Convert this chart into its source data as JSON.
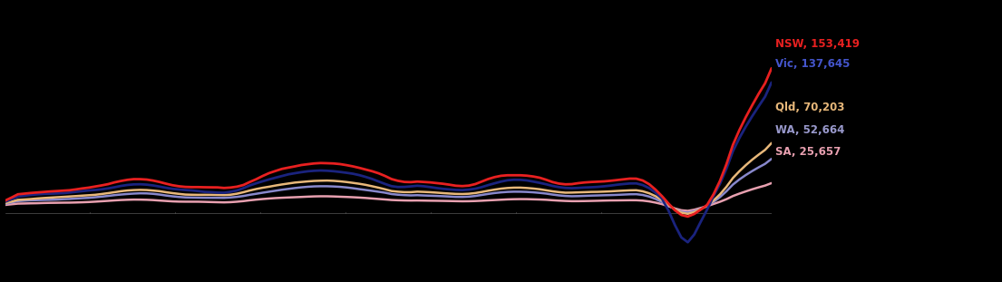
{
  "background_color": "#000000",
  "series": [
    {
      "label": "NSW, 153,419",
      "color": "#e82020",
      "label_color": "#e82020"
    },
    {
      "label": "Vic, 137,645",
      "color": "#1a237e",
      "label_color": "#4455cc"
    },
    {
      "label": "Qld, 70,203",
      "color": "#e8b87a",
      "label_color": "#e8b87a"
    },
    {
      "label": "WA, 52,664",
      "color": "#8888cc",
      "label_color": "#9999cc"
    },
    {
      "label": "SA, 25,657",
      "color": "#e8a0b0",
      "label_color": "#e8a0b0"
    }
  ],
  "axis_color": "#555555",
  "tick_count": 8,
  "label_fontsize": 8.5,
  "linewidth": 1.8
}
